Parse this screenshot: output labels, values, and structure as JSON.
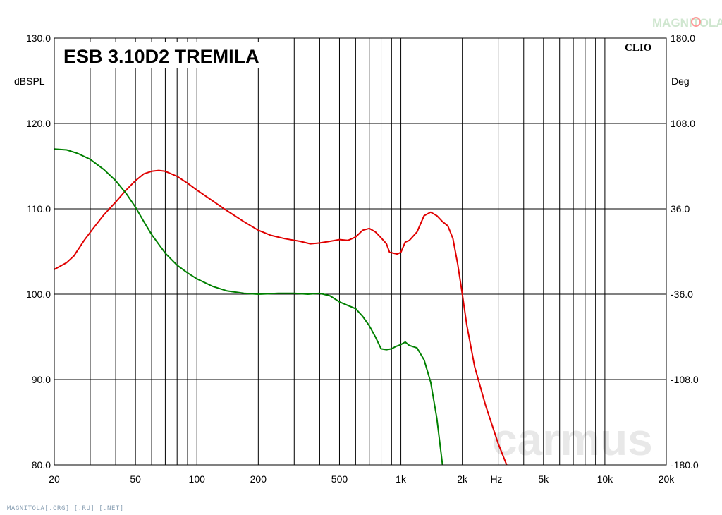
{
  "watermarks": {
    "site_footer": "MAGNITOLA[.ORG] [.RU] [.NET]",
    "carmus": "carmus",
    "logo": "MAGNITOLA"
  },
  "chart_data": {
    "type": "line",
    "title": "ESB 3.10D2 TREMILA",
    "brand": "CLIO",
    "x_scale": "log",
    "xlim": [
      20,
      20000
    ],
    "x_ticks": [
      20,
      50,
      100,
      200,
      500,
      1000,
      2000,
      5000,
      10000,
      20000
    ],
    "x_tick_labels": [
      "20",
      "50",
      "100",
      "200",
      "500",
      "1k",
      "2k",
      "5k",
      "10k",
      "20k"
    ],
    "x_unit_label": "Hz",
    "ylim_left": [
      80,
      130
    ],
    "y_ticks_left": [
      130,
      120,
      110,
      100,
      90,
      80
    ],
    "y_tick_labels_left": [
      "130.0",
      "120.0",
      "110.0",
      "100.0",
      "90.0",
      "80.0"
    ],
    "ylabel_left": "dBSPL",
    "ylim_right": [
      -180,
      180
    ],
    "y_ticks_right": [
      180,
      108,
      36,
      -36,
      -108,
      -180
    ],
    "y_tick_labels_right": [
      "180.0",
      "108.0",
      "36.0",
      "-36.0",
      "-108.0",
      "-180.0"
    ],
    "ylabel_right": "Deg",
    "grid": true,
    "colors": {
      "red": "#e00000",
      "green": "#008000",
      "grid": "#000000"
    },
    "series": [
      {
        "color": "red",
        "points": [
          [
            20,
            102.9
          ],
          [
            23,
            103.7
          ],
          [
            25,
            104.5
          ],
          [
            28,
            106.3
          ],
          [
            31,
            107.7
          ],
          [
            35,
            109.3
          ],
          [
            40,
            110.8
          ],
          [
            45,
            112.2
          ],
          [
            50,
            113.3
          ],
          [
            55,
            114.1
          ],
          [
            60,
            114.4
          ],
          [
            65,
            114.5
          ],
          [
            70,
            114.4
          ],
          [
            80,
            113.8
          ],
          [
            90,
            113.0
          ],
          [
            100,
            112.2
          ],
          [
            120,
            110.9
          ],
          [
            140,
            109.8
          ],
          [
            170,
            108.5
          ],
          [
            200,
            107.5
          ],
          [
            230,
            106.9
          ],
          [
            270,
            106.5
          ],
          [
            320,
            106.2
          ],
          [
            360,
            105.9
          ],
          [
            400,
            106.0
          ],
          [
            450,
            106.2
          ],
          [
            500,
            106.4
          ],
          [
            550,
            106.3
          ],
          [
            600,
            106.7
          ],
          [
            650,
            107.5
          ],
          [
            700,
            107.7
          ],
          [
            750,
            107.3
          ],
          [
            800,
            106.6
          ],
          [
            850,
            105.9
          ],
          [
            880,
            104.9
          ],
          [
            920,
            104.8
          ],
          [
            960,
            104.7
          ],
          [
            1000,
            104.9
          ],
          [
            1050,
            106.1
          ],
          [
            1100,
            106.3
          ],
          [
            1200,
            107.3
          ],
          [
            1300,
            109.2
          ],
          [
            1400,
            109.6
          ],
          [
            1500,
            109.2
          ],
          [
            1600,
            108.5
          ],
          [
            1700,
            108.0
          ],
          [
            1800,
            106.5
          ],
          [
            1900,
            103.5
          ],
          [
            2000,
            100.0
          ],
          [
            2100,
            96.5
          ],
          [
            2300,
            91.5
          ],
          [
            2600,
            87.0
          ],
          [
            3000,
            82.5
          ],
          [
            3300,
            80.0
          ]
        ]
      },
      {
        "color": "green",
        "points": [
          [
            20,
            117.0
          ],
          [
            23,
            116.9
          ],
          [
            26,
            116.5
          ],
          [
            30,
            115.8
          ],
          [
            35,
            114.6
          ],
          [
            40,
            113.3
          ],
          [
            45,
            111.8
          ],
          [
            50,
            110.2
          ],
          [
            55,
            108.5
          ],
          [
            60,
            107.0
          ],
          [
            70,
            104.8
          ],
          [
            80,
            103.4
          ],
          [
            90,
            102.5
          ],
          [
            100,
            101.8
          ],
          [
            120,
            100.9
          ],
          [
            140,
            100.4
          ],
          [
            170,
            100.1
          ],
          [
            200,
            100.0
          ],
          [
            250,
            100.1
          ],
          [
            300,
            100.1
          ],
          [
            350,
            100.0
          ],
          [
            400,
            100.1
          ],
          [
            450,
            99.8
          ],
          [
            500,
            99.1
          ],
          [
            600,
            98.3
          ],
          [
            650,
            97.4
          ],
          [
            700,
            96.3
          ],
          [
            750,
            95.0
          ],
          [
            800,
            93.6
          ],
          [
            850,
            93.5
          ],
          [
            900,
            93.6
          ],
          [
            950,
            93.9
          ],
          [
            1000,
            94.1
          ],
          [
            1050,
            94.4
          ],
          [
            1100,
            94.0
          ],
          [
            1200,
            93.7
          ],
          [
            1300,
            92.3
          ],
          [
            1400,
            89.7
          ],
          [
            1500,
            85.5
          ],
          [
            1600,
            80.0
          ]
        ]
      }
    ]
  }
}
